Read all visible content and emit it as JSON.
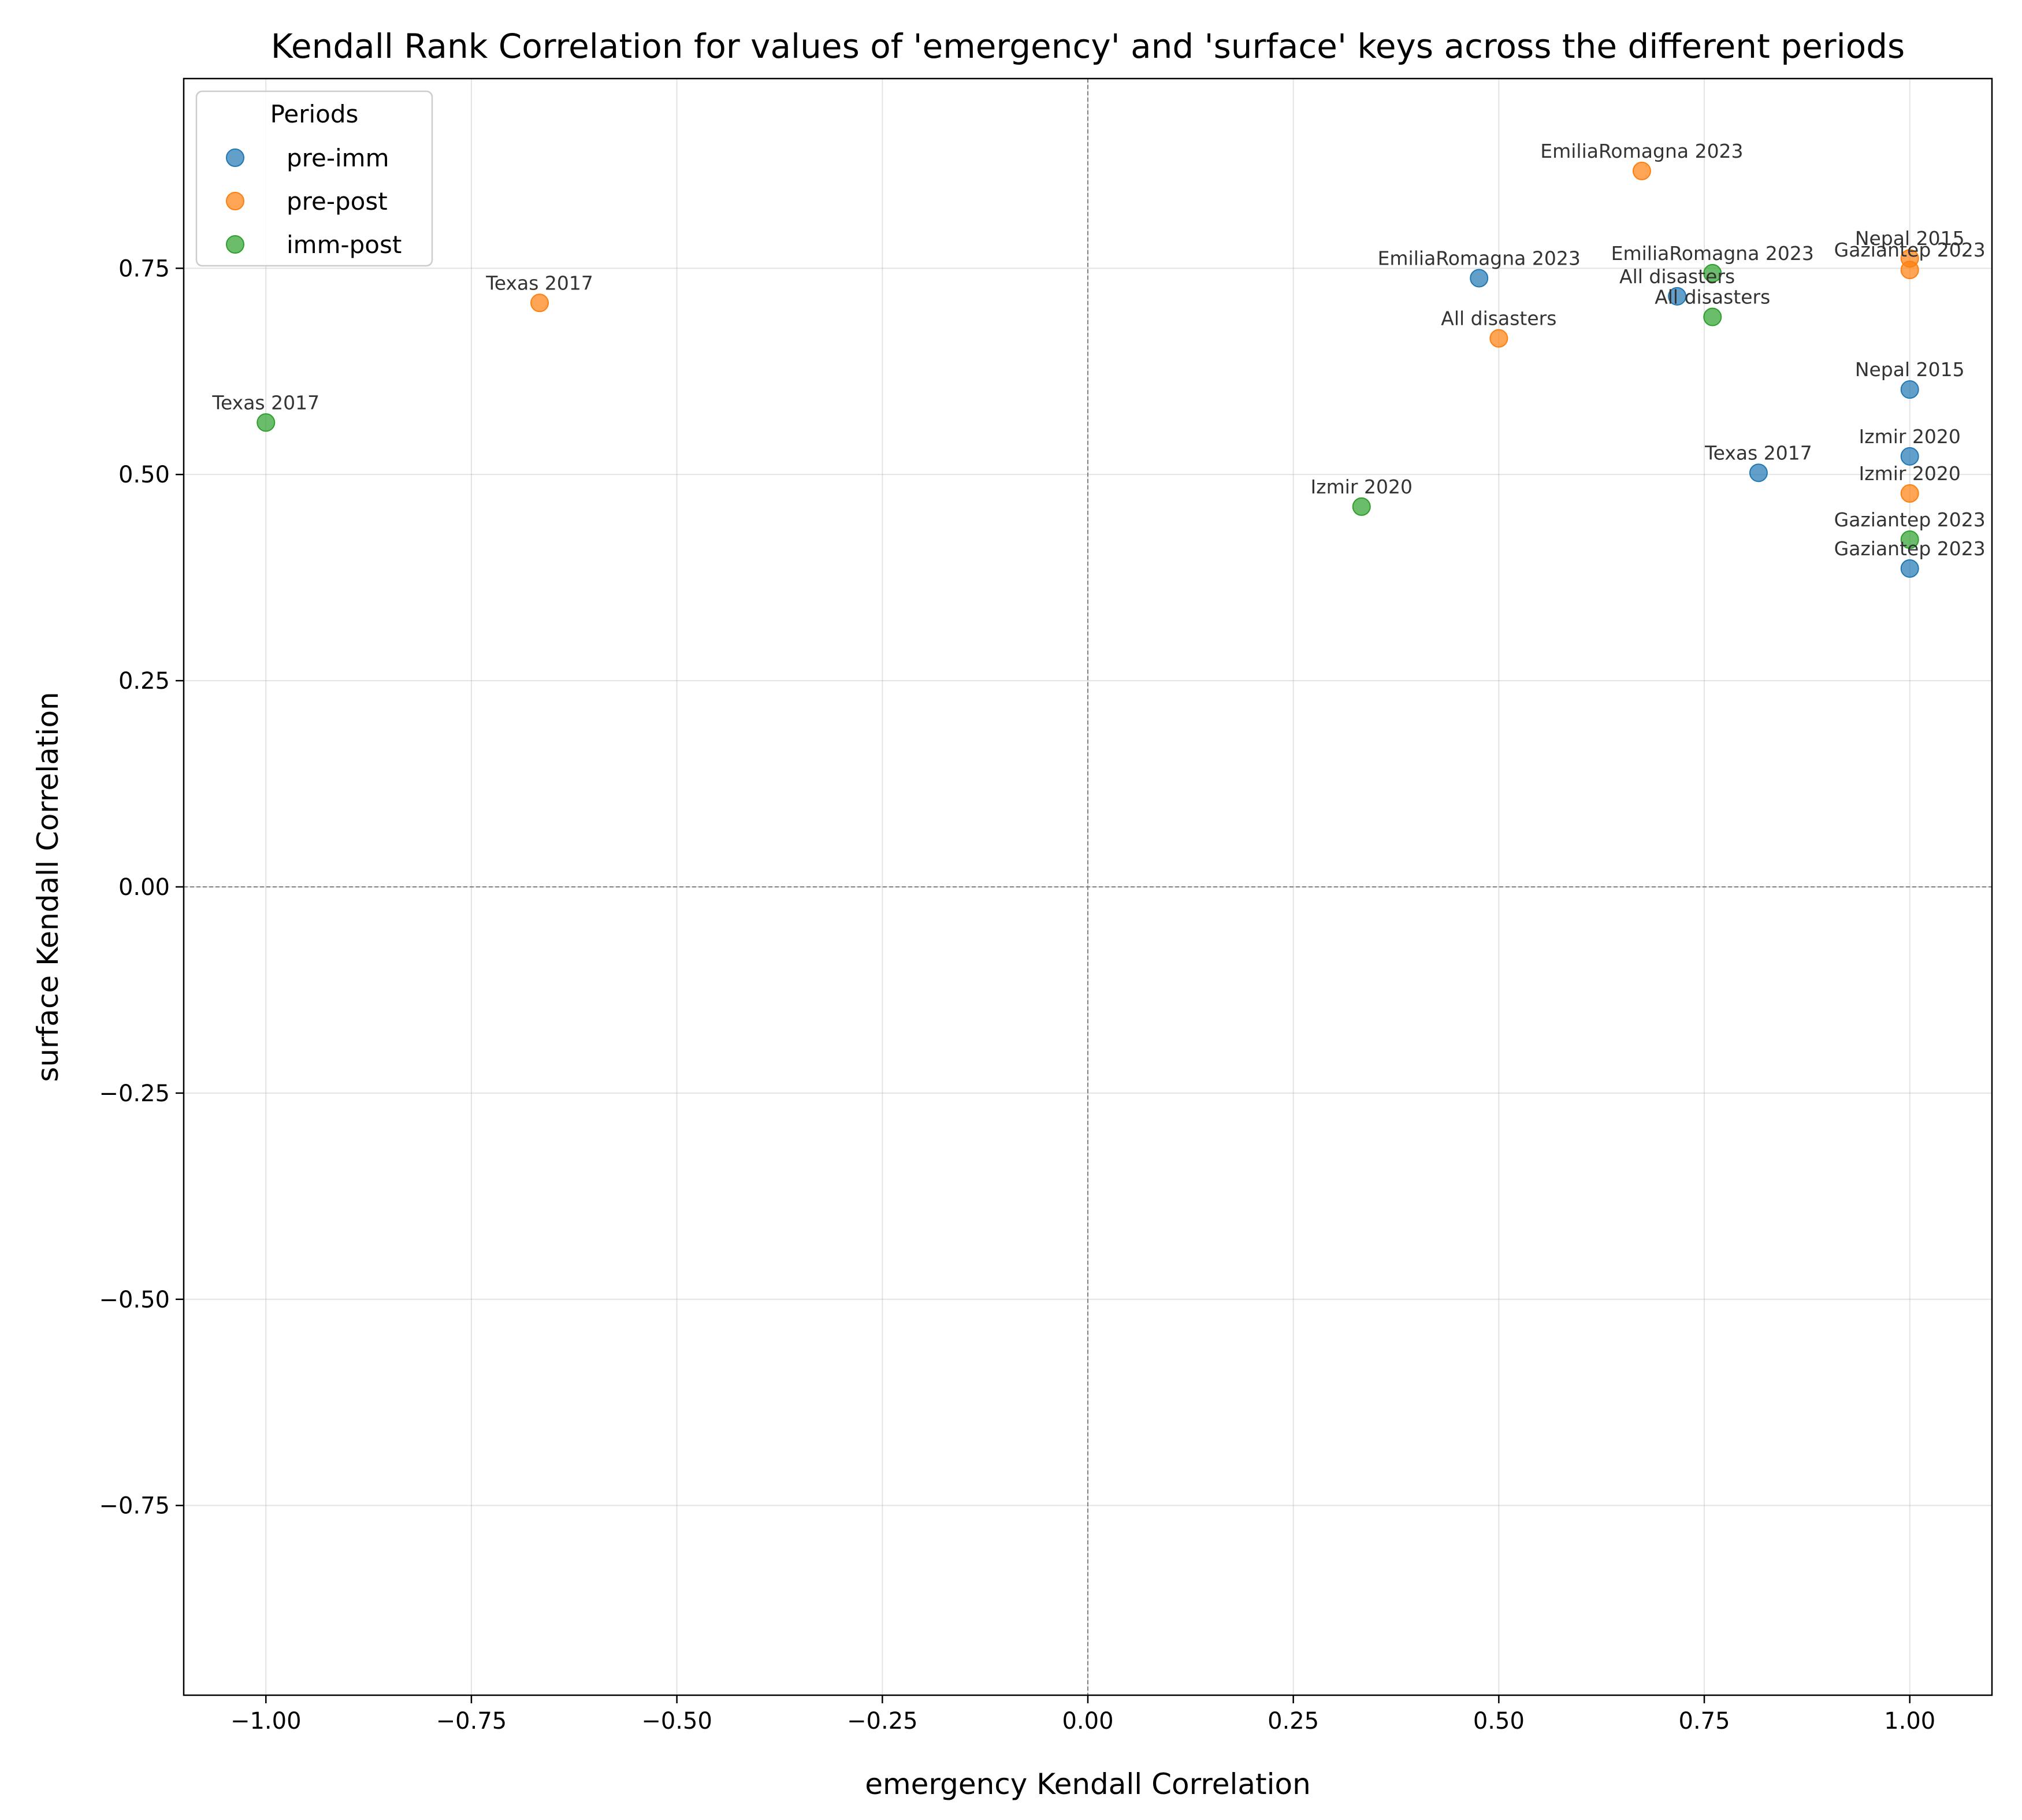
{
  "chart_data": {
    "type": "scatter",
    "title": "Kendall Rank Correlation for values of 'emergency' and 'surface' keys across the different periods",
    "xlabel": "emergency Kendall Correlation",
    "ylabel": "surface Kendall Correlation",
    "xlim": [
      -1.1,
      1.1
    ],
    "ylim": [
      -0.98,
      0.98
    ],
    "xticks": [
      -1.0,
      -0.75,
      -0.5,
      -0.25,
      0.0,
      0.25,
      0.5,
      0.75,
      1.0
    ],
    "xtick_labels": [
      "−1.00",
      "−0.75",
      "−0.50",
      "−0.25",
      "0.00",
      "0.25",
      "0.50",
      "0.75",
      "1.00"
    ],
    "yticks": [
      -0.75,
      -0.5,
      -0.25,
      0.0,
      0.25,
      0.5,
      0.75
    ],
    "ytick_labels": [
      "−0.75",
      "−0.50",
      "−0.25",
      "0.00",
      "0.25",
      "0.50",
      "0.75"
    ],
    "grid": true,
    "reference_lines": {
      "x": 0,
      "y": 0
    },
    "legend": {
      "title": "Periods",
      "placement": "top-left"
    },
    "series": [
      {
        "name": "pre-imm",
        "color": "#1f77b4",
        "points": [
          {
            "label": "EmiliaRomagna 2023",
            "x": 0.476,
            "y": 0.738
          },
          {
            "label": "All disasters",
            "x": 0.717,
            "y": 0.716
          },
          {
            "label": "Nepal 2015",
            "x": 1.0,
            "y": 0.603
          },
          {
            "label": "Izmir 2020",
            "x": 1.0,
            "y": 0.522
          },
          {
            "label": "Texas 2017",
            "x": 0.816,
            "y": 0.502
          },
          {
            "label": "Gaziantep 2023",
            "x": 1.0,
            "y": 0.386
          }
        ]
      },
      {
        "name": "pre-post",
        "color": "#ff7f0e",
        "points": [
          {
            "label": "EmiliaRomagna 2023",
            "x": 0.674,
            "y": 0.868
          },
          {
            "label": "Nepal 2015",
            "x": 1.0,
            "y": 0.762
          },
          {
            "label": "Gaziantep 2023",
            "x": 1.0,
            "y": 0.748
          },
          {
            "label": "Texas 2017",
            "x": -0.667,
            "y": 0.708
          },
          {
            "label": "All disasters",
            "x": 0.5,
            "y": 0.665
          },
          {
            "label": "Izmir 2020",
            "x": 1.0,
            "y": 0.477
          }
        ]
      },
      {
        "name": "imm-post",
        "color": "#2ca02c",
        "points": [
          {
            "label": "EmiliaRomagna 2023",
            "x": 0.76,
            "y": 0.744
          },
          {
            "label": "All disasters",
            "x": 0.76,
            "y": 0.691
          },
          {
            "label": "Texas 2017",
            "x": -1.0,
            "y": 0.563
          },
          {
            "label": "Izmir 2020",
            "x": 0.333,
            "y": 0.461
          },
          {
            "label": "Gaziantep 2023",
            "x": 1.0,
            "y": 0.421
          }
        ]
      }
    ]
  }
}
